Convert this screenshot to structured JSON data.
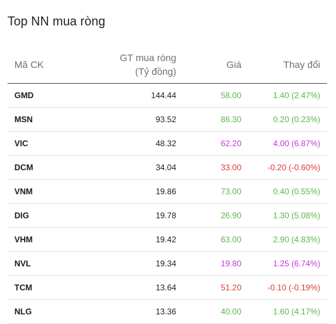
{
  "widget": {
    "title": "Top NN mua ròng"
  },
  "table": {
    "headers": {
      "symbol": "Mã CK",
      "value_line1": "GT mua ròng",
      "value_line2": "(Tỷ đồng)",
      "price": "Giá",
      "change": "Thay đổi"
    },
    "rows": [
      {
        "symbol": "GMD",
        "value": "144.44",
        "price": "58.00",
        "change": "1.40 (2.47%)",
        "status": "up"
      },
      {
        "symbol": "MSN",
        "value": "93.52",
        "price": "86.30",
        "change": "0.20 (0.23%)",
        "status": "up"
      },
      {
        "symbol": "VIC",
        "value": "48.32",
        "price": "62.20",
        "change": "4.00 (6.87%)",
        "status": "ceil"
      },
      {
        "symbol": "DCM",
        "value": "34.04",
        "price": "33.00",
        "change": "-0.20 (-0.60%)",
        "status": "down"
      },
      {
        "symbol": "VNM",
        "value": "19.86",
        "price": "73.00",
        "change": "0.40 (0.55%)",
        "status": "up"
      },
      {
        "symbol": "DIG",
        "value": "19.78",
        "price": "26.90",
        "change": "1.30 (5.08%)",
        "status": "up"
      },
      {
        "symbol": "VHM",
        "value": "19.42",
        "price": "63.00",
        "change": "2.90 (4.83%)",
        "status": "up"
      },
      {
        "symbol": "NVL",
        "value": "19.34",
        "price": "19.80",
        "change": "1.25 (6.74%)",
        "status": "ceil"
      },
      {
        "symbol": "TCM",
        "value": "13.64",
        "price": "51.20",
        "change": "-0.10 (-0.19%)",
        "status": "down"
      },
      {
        "symbol": "NLG",
        "value": "13.36",
        "price": "40.00",
        "change": "1.60 (4.17%)",
        "status": "up"
      }
    ]
  },
  "colors": {
    "up": "#5bb84a",
    "ceil": "#c33ad7",
    "down": "#e03a3a"
  }
}
